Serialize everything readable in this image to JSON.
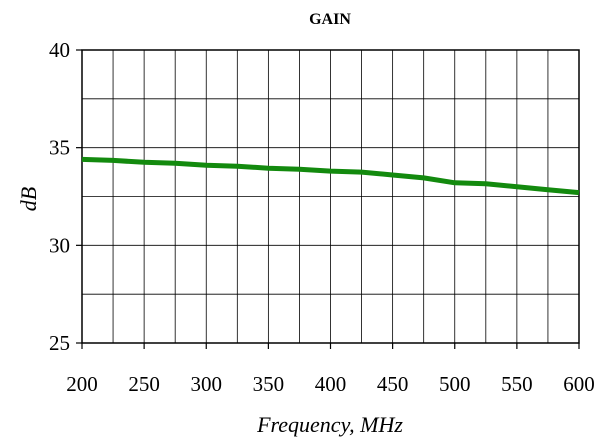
{
  "chart_data": {
    "type": "line",
    "title": "GAIN",
    "xlabel": "Frequency, MHz",
    "ylabel": "dB",
    "xlim": [
      200,
      600
    ],
    "ylim": [
      25,
      40
    ],
    "x_ticks": [
      200,
      250,
      300,
      350,
      400,
      450,
      500,
      550,
      600
    ],
    "y_ticks": [
      25,
      30,
      35,
      40
    ],
    "x_minor_step": 25,
    "y_minor_step": 2.5,
    "grid": true,
    "series": [
      {
        "color": "#138a0e",
        "x": [
          200,
          225,
          250,
          275,
          300,
          325,
          350,
          375,
          400,
          425,
          450,
          475,
          500,
          525,
          550,
          575,
          600
        ],
        "values": [
          34.4,
          34.35,
          34.25,
          34.2,
          34.1,
          34.05,
          33.95,
          33.9,
          33.8,
          33.75,
          33.6,
          33.45,
          33.2,
          33.15,
          33.0,
          32.85,
          32.7
        ]
      }
    ]
  }
}
